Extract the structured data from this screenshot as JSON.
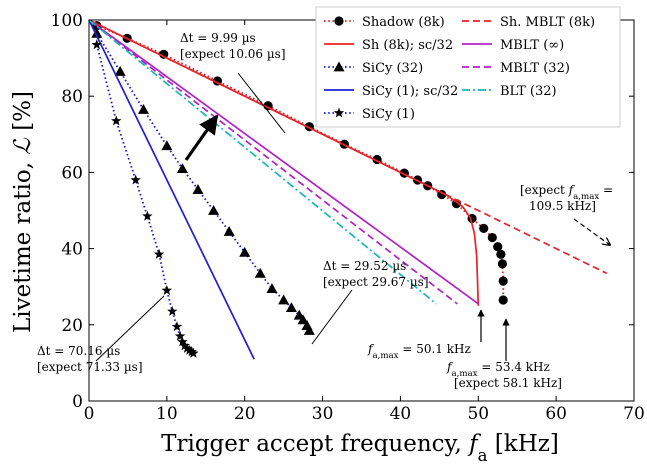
{
  "chart_data": {
    "type": "line",
    "xlabel": "Trigger accept frequency, f_a [kHz]",
    "ylabel": "Livetime ratio, ℒ [%]",
    "xlim": [
      0,
      70
    ],
    "ylim": [
      0,
      100
    ],
    "xticks": [
      0,
      10,
      20,
      30,
      40,
      50,
      60,
      70
    ],
    "yticks": [
      0,
      20,
      40,
      60,
      80,
      100
    ],
    "grid": false,
    "legend_position": "top-right",
    "series": [
      {
        "name": "Shadow (8k)",
        "color": "#d62728",
        "style": "dotted",
        "marker": "circle",
        "x": [
          1,
          4.9,
          9.6,
          16.5,
          23,
          28.3,
          32.8,
          37,
          40.5,
          42.2,
          43.5,
          45.3,
          47.2,
          49.2,
          50.7,
          51.8,
          52.5,
          52.9,
          53.1,
          53.2,
          53.2
        ],
        "y": [
          98.5,
          95.2,
          91,
          84,
          77.5,
          72,
          67.4,
          63.4,
          59.8,
          58,
          56.5,
          54.2,
          51.8,
          47.9,
          45.3,
          42.9,
          40.5,
          38.5,
          36,
          31.5,
          26.5
        ]
      },
      {
        "name": "Sh (8k); sc/32",
        "color": "#e8222a",
        "style": "solid",
        "marker": "none",
        "x": [
          0,
          10,
          20,
          30,
          40,
          46,
          48,
          49,
          49.5,
          49.8,
          50
        ],
        "y": [
          100,
          90,
          80,
          70,
          60,
          54,
          51,
          48,
          44,
          38,
          25
        ]
      },
      {
        "name": "SiCy (32)",
        "color": "#1f1fcf",
        "style": "dotted",
        "marker": "triangle",
        "x": [
          1,
          4,
          7,
          10,
          12,
          14,
          16,
          18,
          20,
          22,
          23.5,
          25,
          26,
          27,
          27.5,
          28,
          28.3
        ],
        "y": [
          96.5,
          86.5,
          76.5,
          67,
          61,
          55.5,
          50,
          44.5,
          39,
          33.5,
          29.5,
          26.5,
          24.5,
          22.5,
          21.3,
          19.8,
          18.5
        ]
      },
      {
        "name": "SiCy (1); sc/32",
        "color": "#1f1fcf",
        "style": "solid",
        "marker": "none",
        "x": [
          0,
          21.2
        ],
        "y": [
          100,
          11
        ]
      },
      {
        "name": "SiCy (1)",
        "color": "#1f1fcf",
        "style": "dotted",
        "marker": "star",
        "x": [
          1,
          3.5,
          6,
          7.5,
          9,
          10,
          10.7,
          11.3,
          11.7,
          12,
          12.3,
          12.6,
          12.9,
          13.2,
          13.4
        ],
        "y": [
          93.5,
          73.5,
          58,
          48.5,
          38.5,
          29,
          23.5,
          19.5,
          17,
          15.5,
          14.5,
          13.8,
          13.3,
          12.9,
          12.5
        ]
      },
      {
        "name": "Sh. MBLT (8k)",
        "color": "#e8222a",
        "style": "dashed",
        "marker": "none",
        "x": [
          0,
          66.5
        ],
        "y": [
          100,
          33.5
        ]
      },
      {
        "name": "MBLT (∞)",
        "color": "#b022c8",
        "style": "solid",
        "marker": "none",
        "x": [
          0,
          50
        ],
        "y": [
          100,
          25.5
        ]
      },
      {
        "name": "MBLT (32)",
        "color": "#b022c8",
        "style": "dashed",
        "marker": "none",
        "x": [
          0,
          47.3
        ],
        "y": [
          100,
          25.5
        ]
      },
      {
        "name": "BLT (32)",
        "color": "#19b6b6",
        "style": "dashdot",
        "marker": "none",
        "x": [
          0,
          44.6
        ],
        "y": [
          100,
          25.5
        ]
      }
    ],
    "annotations": [
      {
        "id": "dt1",
        "lines": [
          "Δt = 9.99 µs",
          "[expect 10.06 µs]"
        ],
        "color": "#000000"
      },
      {
        "id": "dt2",
        "lines": [
          "Δt = 29.52 µs",
          "[expect 29.67 µs]"
        ],
        "color": "#000000"
      },
      {
        "id": "dt3",
        "lines": [
          "Δt = 70.16 µs",
          "[expect 71.33 µs]"
        ],
        "color": "#000000"
      },
      {
        "id": "fmax1",
        "lines": [
          "f_a,max = 50.1 kHz"
        ],
        "color": "#000000"
      },
      {
        "id": "fmax2",
        "lines": [
          "f_a,max = 53.4 kHz",
          "[expect 58.1 kHz]"
        ],
        "color": "#000000"
      },
      {
        "id": "fmax3",
        "lines": [
          "[expect f_a,max =",
          "109.5 kHz]"
        ],
        "color": "#000000"
      }
    ]
  }
}
